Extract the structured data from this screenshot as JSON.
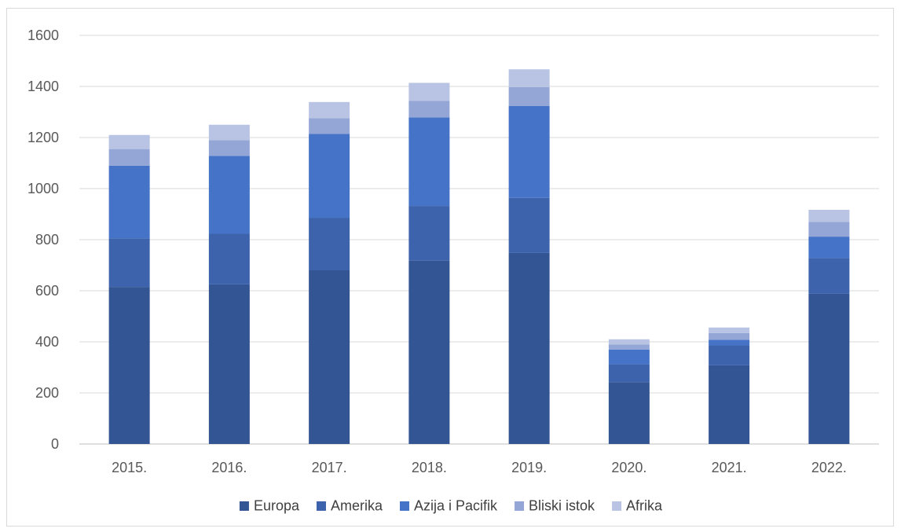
{
  "chart_data": {
    "type": "bar",
    "stacked": true,
    "title": "",
    "xlabel": "",
    "ylabel": "",
    "categories": [
      "2015.",
      "2016.",
      "2017.",
      "2018.",
      "2019.",
      "2020.",
      "2021.",
      "2022."
    ],
    "ylim": [
      0,
      1600
    ],
    "yticks": [
      0,
      200,
      400,
      600,
      800,
      1000,
      1200,
      1400,
      1600
    ],
    "grid": true,
    "legend_position": "bottom",
    "series": [
      {
        "name": "Europa",
        "color": "#335593",
        "values": [
          615,
          625,
          680,
          718,
          748,
          242,
          308,
          588
        ]
      },
      {
        "name": "Amerika",
        "color": "#3c63ac",
        "values": [
          190,
          198,
          206,
          214,
          216,
          70,
          78,
          140
        ]
      },
      {
        "name": "Azija i Pacifik",
        "color": "#4573c7",
        "values": [
          285,
          305,
          328,
          347,
          360,
          58,
          22,
          84
        ]
      },
      {
        "name": "Bliski istok",
        "color": "#94a6d6",
        "values": [
          65,
          62,
          62,
          65,
          73,
          20,
          26,
          58
        ]
      },
      {
        "name": "Afrika",
        "color": "#b9c4e4",
        "values": [
          55,
          60,
          63,
          70,
          70,
          20,
          22,
          47
        ]
      }
    ]
  }
}
